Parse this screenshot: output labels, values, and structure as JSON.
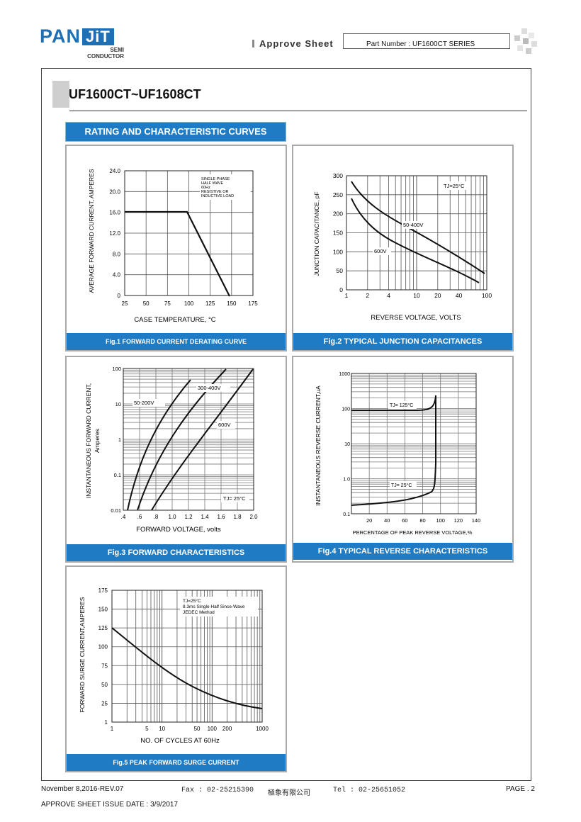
{
  "header": {
    "logo_pan": "PAN",
    "logo_jit": "JiT",
    "logo_semi": "SEMI",
    "logo_conductor": "CONDUCTOR",
    "approve_sheet": "Approve Sheet",
    "part_number": "Part Number : UF1600CT  SERIES"
  },
  "title": "UF1600CT~UF1608CT",
  "section_title": "RATING AND CHARACTERISTIC CURVES",
  "figures": {
    "fig1": {
      "caption": "Fig.1 FORWARD CURRENT DERATING CURVE",
      "ylabel": "AVERAGE FORWARD CURRENT, AMPERES",
      "xlabel": "CASE TEMPERATURE, °C",
      "yticks": [
        "24.0",
        "20.0",
        "16.0",
        "12.0",
        "8.0",
        "4.0",
        "0"
      ],
      "xticks": [
        "25",
        "50",
        "75",
        "100",
        "125",
        "150",
        "175"
      ],
      "note": [
        "SINGLE PHASE",
        "HALF WAVE",
        "60Hz",
        "RESISTIVE OR",
        "INDUCTIVE LOAD"
      ]
    },
    "fig2": {
      "caption": "Fig.2 TYPICAL JUNCTION CAPACITANCES",
      "ylabel": "JUNCTION CAPACITANCE, pF",
      "xlabel": "REVERSE VOLTAGE, VOLTS",
      "yticks": [
        "300",
        "250",
        "200",
        "150",
        "100",
        "50",
        "0"
      ],
      "xticks": [
        "1",
        "2",
        "4",
        "10",
        "20",
        "40",
        "100"
      ],
      "note": "TJ=25°C",
      "label_a": "50-400V",
      "label_b": "600V"
    },
    "fig3": {
      "caption": "Fig.3 FORWARD CHARACTERISTICS",
      "ylabel": "INSTANTANEOUS FORWARD CURRENT,",
      "ylabel2": "Amperes",
      "xlabel": "FORWARD VOLTAGE, volts",
      "yticks": [
        "100",
        "10",
        "1",
        "0.1",
        "0.01"
      ],
      "xticks": [
        ".4",
        ".6",
        ".8",
        "1.0",
        "1.2",
        "1.4",
        "1.6",
        "1.8",
        "2.0"
      ],
      "label_a": "50-200V",
      "label_b": "300-400V",
      "label_c": "600V",
      "note": "TJ= 25°C"
    },
    "fig4": {
      "caption": "Fig.4 TYPICAL REVERSE CHARACTERISTICS",
      "ylabel": "INSTANTANEOUS REVERSE CURRENT,uA",
      "xlabel": "PERCENTAGE OF PEAK REVERSE VOLTAGE,%",
      "yticks": [
        "1000",
        "100",
        "10",
        "1.0",
        "0.1"
      ],
      "xticks": [
        "20",
        "40",
        "60",
        "80",
        "100",
        "120",
        "140"
      ],
      "label_a": "TJ= 125°C",
      "label_b": "TJ= 25°C"
    },
    "fig5": {
      "caption": "Fig.5 PEAK FORWARD SURGE CURRENT",
      "ylabel": "FORWARD SURGE CURRENT,AMPERES",
      "xlabel": "NO. OF CYCLES AT 60Hz",
      "yticks": [
        "175",
        "150",
        "125",
        "100",
        "75",
        "50",
        "25",
        "1"
      ],
      "xticks": [
        "1",
        "5",
        "10",
        "50",
        "100",
        "200",
        "1000"
      ],
      "note": [
        "TJ=25°C",
        "8.3ms Single Half Since-Wave",
        "JEDEC Method"
      ]
    }
  },
  "footer": {
    "date": "November 8,2016-REV.07",
    "fax": "Fax : 02-25215390",
    "company": "極象有限公司",
    "tel": "Tel : 02-25651052",
    "page": "PAGE . 2",
    "issue": "APPROVE SHEET ISSUE DATE : 3/9/2017"
  }
}
